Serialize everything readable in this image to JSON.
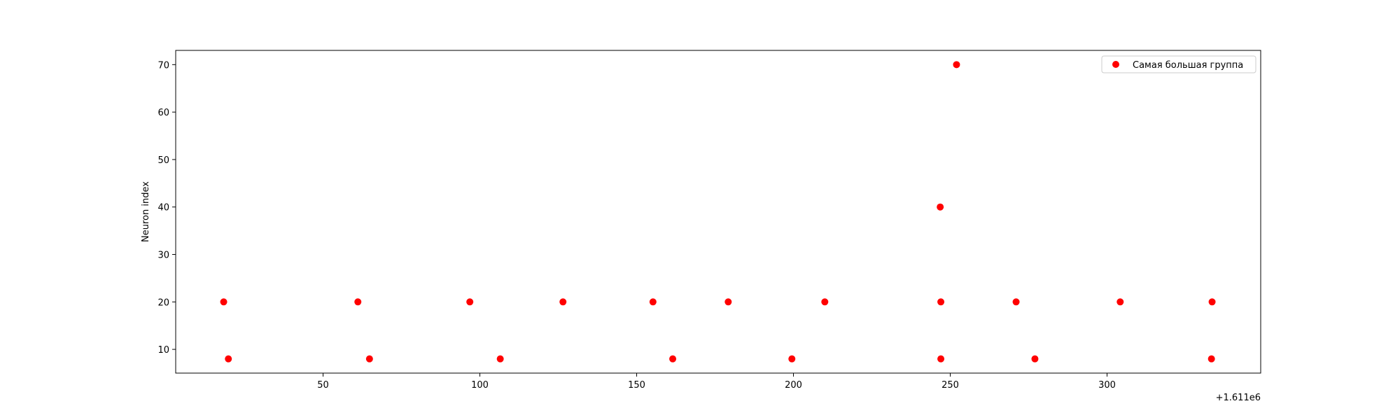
{
  "chart_data": {
    "type": "scatter",
    "title": "",
    "xlabel": "",
    "ylabel": "Neuron index",
    "x_offset_label": "+1.611e6",
    "xlim": [
      1611003,
      1611349
    ],
    "ylim": [
      5,
      73
    ],
    "x_ticks": [
      1611050,
      1611100,
      1611150,
      1611200,
      1611250,
      1611300
    ],
    "x_tick_labels": [
      "50",
      "100",
      "150",
      "200",
      "250",
      "300"
    ],
    "y_ticks": [
      10,
      20,
      30,
      40,
      50,
      60,
      70
    ],
    "y_tick_labels": [
      "10",
      "20",
      "30",
      "40",
      "50",
      "60",
      "70"
    ],
    "grid": false,
    "legend_placement": "top-right",
    "series": [
      {
        "name": "Самая большая группа",
        "color": "#ff0000",
        "marker": "circle",
        "points": [
          {
            "x": 1611018.3,
            "y": 20
          },
          {
            "x": 1611019.8,
            "y": 8
          },
          {
            "x": 1611061.1,
            "y": 20
          },
          {
            "x": 1611064.8,
            "y": 8
          },
          {
            "x": 1611096.8,
            "y": 20
          },
          {
            "x": 1611106.5,
            "y": 8
          },
          {
            "x": 1611126.5,
            "y": 20
          },
          {
            "x": 1611155.2,
            "y": 20
          },
          {
            "x": 1611161.5,
            "y": 8
          },
          {
            "x": 1611179.2,
            "y": 20
          },
          {
            "x": 1611199.5,
            "y": 8
          },
          {
            "x": 1611210.0,
            "y": 20
          },
          {
            "x": 1611246.8,
            "y": 40
          },
          {
            "x": 1611247.0,
            "y": 20
          },
          {
            "x": 1611247.0,
            "y": 8
          },
          {
            "x": 1611252.0,
            "y": 70
          },
          {
            "x": 1611271.0,
            "y": 20
          },
          {
            "x": 1611277.0,
            "y": 8
          },
          {
            "x": 1611304.2,
            "y": 20
          },
          {
            "x": 1611333.5,
            "y": 20
          },
          {
            "x": 1611333.3,
            "y": 8
          }
        ]
      }
    ]
  }
}
